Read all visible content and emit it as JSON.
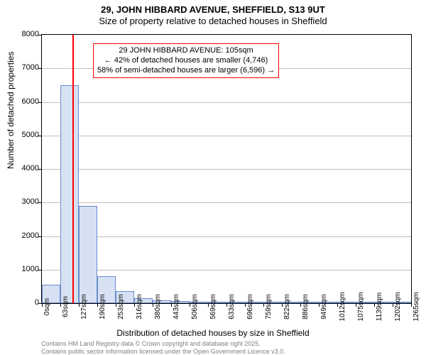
{
  "title_line1": "29, JOHN HIBBARD AVENUE, SHEFFIELD, S13 9UT",
  "title_line2": "Size of property relative to detached houses in Sheffield",
  "chart": {
    "type": "histogram",
    "ylabel": "Number of detached properties",
    "xlabel": "Distribution of detached houses by size in Sheffield",
    "ylim": [
      0,
      8000
    ],
    "ytick_step": 1000,
    "bar_fill": "#d6e1f3",
    "bar_border": "#6a8bc9",
    "grid_color": "#bfbfbf",
    "background": "#ffffff",
    "marker_color": "#ff0000",
    "marker_x_sqm": 105,
    "x_ticks": [
      0,
      63,
      127,
      190,
      253,
      316,
      380,
      443,
      506,
      569,
      633,
      696,
      759,
      822,
      886,
      949,
      1012,
      1075,
      1139,
      1202,
      1265
    ],
    "bars": [
      {
        "x": 0,
        "x_end": 63,
        "value": 550
      },
      {
        "x": 63,
        "x_end": 127,
        "value": 6500
      },
      {
        "x": 127,
        "x_end": 190,
        "value": 2900
      },
      {
        "x": 190,
        "x_end": 253,
        "value": 800
      },
      {
        "x": 253,
        "x_end": 316,
        "value": 350
      },
      {
        "x": 316,
        "x_end": 380,
        "value": 150
      },
      {
        "x": 380,
        "x_end": 443,
        "value": 80
      },
      {
        "x": 443,
        "x_end": 506,
        "value": 70
      },
      {
        "x": 506,
        "x_end": 569,
        "value": 50
      },
      {
        "x": 569,
        "x_end": 633,
        "value": 30
      },
      {
        "x": 633,
        "x_end": 696,
        "value": 25
      },
      {
        "x": 696,
        "x_end": 759,
        "value": 20
      },
      {
        "x": 759,
        "x_end": 822,
        "value": 15
      },
      {
        "x": 822,
        "x_end": 886,
        "value": 10
      },
      {
        "x": 886,
        "x_end": 949,
        "value": 10
      },
      {
        "x": 949,
        "x_end": 1012,
        "value": 10
      },
      {
        "x": 1012,
        "x_end": 1075,
        "value": 5
      },
      {
        "x": 1075,
        "x_end": 1139,
        "value": 5
      },
      {
        "x": 1139,
        "x_end": 1202,
        "value": 5
      },
      {
        "x": 1202,
        "x_end": 1265,
        "value": 5
      }
    ],
    "x_max": 1265
  },
  "annotation": {
    "line1": "29 JOHN HIBBARD AVENUE: 105sqm",
    "line2": "← 42% of detached houses are smaller (4,746)",
    "line3": "58% of semi-detached houses are larger (6,596) →",
    "border_color": "#ff0000",
    "bg_color": "#ffffff"
  },
  "footer": {
    "line1": "Contains HM Land Registry data © Crown copyright and database right 2025.",
    "line2": "Contains public sector information licensed under the Open Government Licence v3.0."
  },
  "label_fontsize": 12,
  "tick_fontsize": 11
}
